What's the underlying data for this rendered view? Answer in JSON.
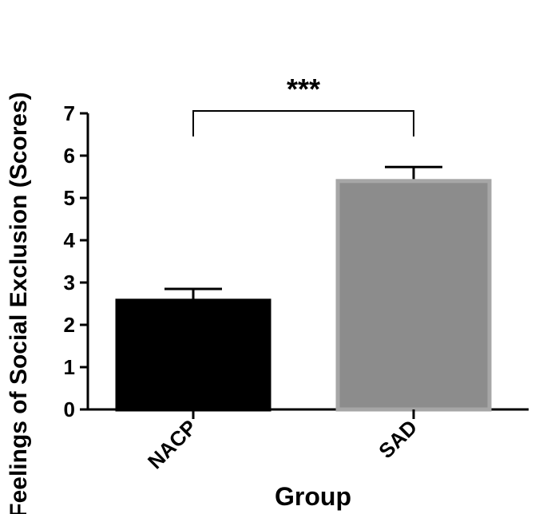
{
  "chart_data": {
    "type": "bar",
    "title": "",
    "xlabel": "Group",
    "ylabel": "Feelings of Social Exclusion (Scores)",
    "categories": [
      "NACP",
      "SAD"
    ],
    "values": [
      2.57,
      5.4
    ],
    "error_upper": [
      2.85,
      5.73
    ],
    "ylim": [
      0,
      7
    ],
    "yticks": [
      "0",
      "1",
      "2",
      "3",
      "4",
      "5",
      "6",
      "7"
    ],
    "bar_colors": [
      "#000000",
      "#8c8c8c"
    ],
    "bar_edge_colors": [
      "#000000",
      "#a6a6a6"
    ],
    "grid": false,
    "legend": "none",
    "significance": {
      "between": [
        "NACP",
        "SAD"
      ],
      "label": "***"
    }
  }
}
